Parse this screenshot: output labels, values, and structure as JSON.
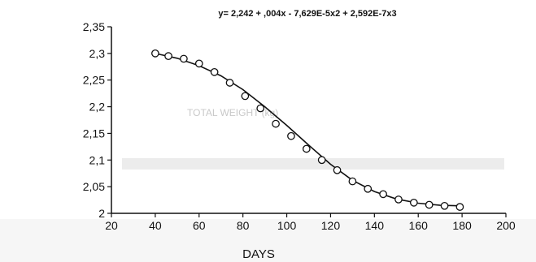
{
  "chart_data": {
    "type": "scatter",
    "equation": "y= 2,242 + ,004x - 7,629E-5x2 + 2,592E-7x3",
    "xlabel": "DAYS",
    "ylabel": "",
    "xlim": [
      20,
      200
    ],
    "ylim": [
      2.0,
      2.35
    ],
    "x_ticks": [
      "20",
      "40",
      "60",
      "80",
      "100",
      "120",
      "140",
      "160",
      "180",
      "200"
    ],
    "y_ticks": [
      "2,35",
      "2,3",
      "2,25",
      "2,2",
      "2,15",
      "2,1",
      "2,05",
      "2"
    ],
    "grid": false,
    "series": [
      {
        "kind": "points",
        "marker": "open-circle",
        "x": [
          40,
          46,
          53,
          60,
          67,
          74,
          81,
          88,
          95,
          102,
          109,
          116,
          123,
          130,
          137,
          144,
          151,
          158,
          165,
          172,
          179
        ],
        "y": [
          2.3,
          2.295,
          2.29,
          2.281,
          2.265,
          2.245,
          2.22,
          2.197,
          2.168,
          2.145,
          2.121,
          2.1,
          2.081,
          2.06,
          2.046,
          2.036,
          2.026,
          2.02,
          2.016,
          2.014,
          2.012
        ]
      },
      {
        "kind": "fit-line",
        "x": [
          40,
          50,
          60,
          70,
          80,
          90,
          100,
          110,
          120,
          130,
          140,
          150,
          160,
          170,
          180
        ],
        "y": [
          2.3,
          2.291,
          2.277,
          2.258,
          2.232,
          2.2,
          2.165,
          2.128,
          2.092,
          2.062,
          2.041,
          2.027,
          2.019,
          2.015,
          2.014
        ]
      }
    ]
  },
  "background_text": [
    "TOTAL WEIGHT (kg)"
  ]
}
